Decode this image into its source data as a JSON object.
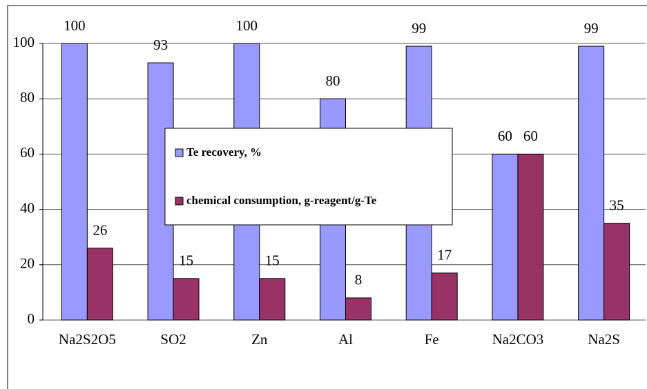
{
  "chart_data": {
    "type": "bar",
    "categories": [
      "Na2S2O5",
      "SO2",
      "Zn",
      "Al",
      "Fe",
      "Na2CO3",
      "Na2S"
    ],
    "series": [
      {
        "name": "Te recovery, %",
        "color": "#9999ff",
        "values": [
          100,
          93,
          100,
          80,
          99,
          60,
          99
        ]
      },
      {
        "name": "chemical consumption, g-reagent/g-Te",
        "color": "#993366",
        "values": [
          26,
          15,
          15,
          8,
          17,
          60,
          35
        ]
      }
    ],
    "ylim": [
      0,
      100
    ],
    "yticks": [
      0,
      20,
      40,
      60,
      80,
      100
    ],
    "grid": true,
    "legend": "center"
  }
}
